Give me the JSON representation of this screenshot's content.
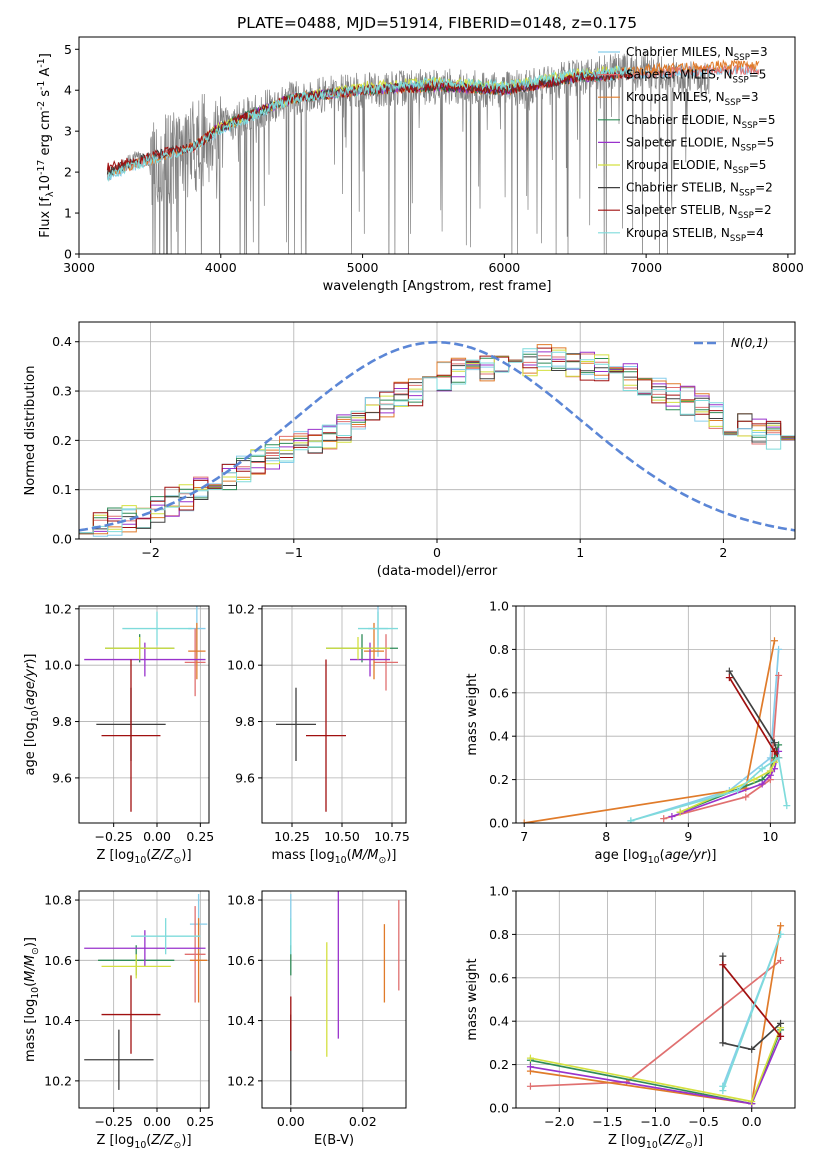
{
  "chart_data": [
    {
      "id": "spectrum",
      "type": "line",
      "title": "PLATE=0488, MJD=51914, FIBERID=0148, z=0.175",
      "xlabel": "wavelength [Angstrom, rest frame]",
      "ylabel": "Flux [f$_\\lambda$10$^{-17}$ erg cm$^{-2}$ s$^{-1}$ A$^{-1}$]",
      "xlim": [
        3000,
        8050
      ],
      "ylim": [
        0,
        5.3
      ],
      "xticks": [
        3000,
        4000,
        5000,
        6000,
        7000,
        8000
      ],
      "yticks": [
        0,
        1,
        2,
        3,
        4,
        5
      ],
      "grid": false,
      "legend_position": "upper-right",
      "data_series": {
        "name": "",
        "color": "#808080",
        "x": [
          3200,
          3400,
          3500,
          3600,
          3800,
          4000,
          4200,
          4500,
          5000,
          5500,
          6000,
          6500,
          6800,
          7000,
          7300,
          7450
        ],
        "y": [
          1.9,
          2.4,
          2.2,
          2.3,
          2.6,
          3.1,
          3.4,
          3.8,
          4.0,
          4.1,
          4.0,
          4.3,
          4.5,
          4.5,
          4.3,
          4.2
        ],
        "noise_from_x": 3500
      },
      "series": [
        {
          "name": "Chabrier MILES, N$_{SSP}$=3",
          "color": "#87ceeb",
          "x": [
            3200,
            3500,
            3800,
            4000,
            4500,
            5000,
            5500,
            6000,
            6500,
            7000,
            7500,
            7800
          ],
          "y": [
            1.9,
            2.3,
            2.6,
            3.0,
            3.8,
            4.0,
            4.1,
            4.0,
            4.3,
            4.4,
            4.5,
            4.5
          ]
        },
        {
          "name": "Salpeter MILES, N$_{SSP}$=5",
          "color": "#e07070",
          "x": [
            3200,
            3500,
            3800,
            4000,
            4500,
            5000,
            5500,
            6000,
            6500,
            7000,
            7500,
            7800
          ],
          "y": [
            2.0,
            2.3,
            2.6,
            3.1,
            3.8,
            4.0,
            4.1,
            4.0,
            4.3,
            4.4,
            4.5,
            4.5
          ]
        },
        {
          "name": "Kroupa MILES, N$_{SSP}$=3",
          "color": "#e07b2a",
          "x": [
            3200,
            3500,
            3800,
            4000,
            4500,
            5000,
            5500,
            6000,
            6500,
            7000,
            7500,
            7800
          ],
          "y": [
            2.0,
            2.3,
            2.6,
            3.1,
            3.8,
            4.0,
            4.1,
            4.0,
            4.3,
            4.5,
            4.6,
            4.6
          ]
        },
        {
          "name": "Chabrier ELODIE, N$_{SSP}$=5",
          "color": "#2e8b57",
          "x": [
            3900,
            4000,
            4500,
            5000,
            5500,
            6000,
            6500,
            6800
          ],
          "y": [
            2.9,
            3.1,
            3.8,
            4.0,
            4.1,
            4.0,
            4.3,
            4.4
          ]
        },
        {
          "name": "Salpeter ELODIE, N$_{SSP}$=5",
          "color": "#9932cc",
          "x": [
            3900,
            4000,
            4500,
            5000,
            5500,
            6000,
            6500,
            6800
          ],
          "y": [
            2.9,
            3.1,
            3.8,
            4.0,
            4.1,
            4.0,
            4.3,
            4.4
          ]
        },
        {
          "name": "Kroupa ELODIE, N$_{SSP}$=5",
          "color": "#d4e040",
          "x": [
            3900,
            4000,
            4500,
            5000,
            5500,
            6000,
            6500,
            6800
          ],
          "y": [
            2.9,
            3.1,
            3.8,
            4.1,
            4.2,
            4.1,
            4.4,
            4.5
          ]
        },
        {
          "name": "Chabrier STELIB, N$_{SSP}$=2",
          "color": "#404040",
          "x": [
            3200,
            3500,
            3800,
            4000,
            4500,
            5000,
            5500,
            6000,
            6500,
            6900
          ],
          "y": [
            2.0,
            2.4,
            2.6,
            3.1,
            3.8,
            4.0,
            4.1,
            4.0,
            4.3,
            4.4
          ]
        },
        {
          "name": "Salpeter STELIB, N$_{SSP}$=2",
          "color": "#a01010",
          "x": [
            3200,
            3500,
            3800,
            4000,
            4500,
            5000,
            5500,
            6000,
            6500,
            6900
          ],
          "y": [
            2.1,
            2.4,
            2.6,
            3.1,
            3.8,
            4.0,
            4.1,
            4.0,
            4.3,
            4.4
          ]
        },
        {
          "name": "Kroupa STELIB, N$_{SSP}$=4",
          "color": "#7fdbdb",
          "x": [
            3200,
            3500,
            3800,
            4000,
            4500,
            5000,
            5500,
            6000,
            6500,
            6900
          ],
          "y": [
            1.9,
            2.3,
            2.6,
            3.0,
            3.8,
            4.0,
            4.2,
            4.1,
            4.4,
            4.5
          ]
        }
      ]
    },
    {
      "id": "residuals",
      "type": "histogram",
      "xlabel": "(data-model)/error",
      "ylabel": "Normed distribution",
      "xlim": [
        -2.5,
        2.5
      ],
      "ylim": [
        0,
        0.44
      ],
      "xticks": [
        -2,
        -1,
        0,
        1,
        2
      ],
      "yticks": [
        0.0,
        0.1,
        0.2,
        0.3,
        0.4
      ],
      "grid": true,
      "legend_position": "upper-right",
      "gaussian": {
        "name": "$\\mathcal{N}(0,1)$",
        "mean": 0,
        "sigma": 1,
        "color": "#5b86d6",
        "style": "dashed"
      },
      "bin_start": -2.5,
      "bin_width": 0.1,
      "base_profile": [
        0.025,
        0.03,
        0.035,
        0.04,
        0.05,
        0.06,
        0.075,
        0.085,
        0.1,
        0.12,
        0.13,
        0.14,
        0.155,
        0.165,
        0.18,
        0.19,
        0.2,
        0.21,
        0.225,
        0.245,
        0.26,
        0.27,
        0.29,
        0.3,
        0.32,
        0.33,
        0.34,
        0.35,
        0.345,
        0.355,
        0.36,
        0.36,
        0.365,
        0.37,
        0.355,
        0.35,
        0.345,
        0.34,
        0.33,
        0.32,
        0.3,
        0.29,
        0.28,
        0.265,
        0.25,
        0.24,
        0.23,
        0.22,
        0.21,
        0.2,
        0.19,
        0.18,
        0.17,
        0.16,
        0.14,
        0.12,
        0.1,
        0.09,
        0.07,
        0.06
      ],
      "series_colors": [
        "#87ceeb",
        "#e07070",
        "#e07b2a",
        "#2e8b57",
        "#9932cc",
        "#d4e040",
        "#404040",
        "#a01010",
        "#7fdbdb"
      ]
    },
    {
      "id": "age-vs-Z",
      "type": "errorbar",
      "xlabel": "Z [log$_{10}$($Z/Z_\\odot$)]",
      "ylabel": "age  [log$_{10}$($age/yr$)]",
      "xlim": [
        -0.45,
        0.3
      ],
      "ylim": [
        9.44,
        10.21
      ],
      "xticks": [
        -0.25,
        0.0,
        0.25
      ],
      "yticks": [
        9.6,
        9.8,
        10.0,
        10.2
      ],
      "grid": true,
      "points": [
        {
          "color": "#87ceeb",
          "x": 0.23,
          "y": 10.13,
          "xerr": 0.05,
          "yerr": 0.1
        },
        {
          "color": "#e07070",
          "x": 0.22,
          "y": 10.01,
          "xerr": 0.06,
          "yerr": 0.12
        },
        {
          "color": "#e07b2a",
          "x": 0.23,
          "y": 10.05,
          "xerr": 0.05,
          "yerr": 0.1
        },
        {
          "color": "#2e8b57",
          "x": -0.1,
          "y": 10.06,
          "xerr": 0.2,
          "yerr": 0.05
        },
        {
          "color": "#9932cc",
          "x": -0.07,
          "y": 10.02,
          "xerr": 0.35,
          "yerr": 0.06
        },
        {
          "color": "#d4e040",
          "x": -0.1,
          "y": 10.06,
          "xerr": 0.2,
          "yerr": 0.04
        },
        {
          "color": "#404040",
          "x": -0.15,
          "y": 9.79,
          "xerr": 0.2,
          "yerr": 0.13
        },
        {
          "color": "#a01010",
          "x": -0.15,
          "y": 9.75,
          "xerr": 0.17,
          "yerr": 0.27
        },
        {
          "color": "#7fdbdb",
          "x": 0.0,
          "y": 10.13,
          "xerr": 0.2,
          "yerr": 0.06
        }
      ]
    },
    {
      "id": "age-vs-mass",
      "type": "errorbar",
      "xlabel": "mass [log$_{10}$($M/M_\\odot$)]",
      "ylabel": "",
      "xlim": [
        10.1,
        10.82
      ],
      "ylim": [
        9.44,
        10.21
      ],
      "xticks": [
        10.25,
        10.5,
        10.75
      ],
      "yticks": [
        9.6,
        9.8,
        10.0,
        10.2
      ],
      "grid": true,
      "points": [
        {
          "color": "#87ceeb",
          "x": 10.68,
          "y": 10.13,
          "xerr": 0.05,
          "yerr": 0.1
        },
        {
          "color": "#e07070",
          "x": 10.72,
          "y": 10.01,
          "xerr": 0.06,
          "yerr": 0.1
        },
        {
          "color": "#e07b2a",
          "x": 10.66,
          "y": 10.05,
          "xerr": 0.05,
          "yerr": 0.1
        },
        {
          "color": "#2e8b57",
          "x": 10.6,
          "y": 10.06,
          "xerr": 0.18,
          "yerr": 0.05
        },
        {
          "color": "#9932cc",
          "x": 10.64,
          "y": 10.02,
          "xerr": 0.1,
          "yerr": 0.06
        },
        {
          "color": "#d4e040",
          "x": 10.58,
          "y": 10.06,
          "xerr": 0.16,
          "yerr": 0.04
        },
        {
          "color": "#404040",
          "x": 10.27,
          "y": 9.79,
          "xerr": 0.1,
          "yerr": 0.13
        },
        {
          "color": "#a01010",
          "x": 10.42,
          "y": 9.75,
          "xerr": 0.1,
          "yerr": 0.27
        },
        {
          "color": "#7fdbdb",
          "x": 10.68,
          "y": 10.13,
          "xerr": 0.1,
          "yerr": 0.06
        }
      ]
    },
    {
      "id": "massweight-vs-age",
      "type": "line",
      "xlabel": "age  [log$_{10}$($age/yr$)]",
      "ylabel": "mass weight",
      "xlim": [
        6.9,
        10.3
      ],
      "ylim": [
        0,
        1
      ],
      "xticks": [
        7,
        8,
        9,
        10
      ],
      "yticks": [
        0.0,
        0.2,
        0.4,
        0.6,
        0.8,
        1.0
      ],
      "grid": true,
      "series": [
        {
          "color": "#87ceeb",
          "x": [
            8.3,
            9.5,
            10.0,
            10.1
          ],
          "y": [
            0.01,
            0.15,
            0.3,
            0.8
          ]
        },
        {
          "color": "#e07070",
          "x": [
            8.7,
            9.7,
            10.0,
            10.1
          ],
          "y": [
            0.02,
            0.12,
            0.2,
            0.68
          ]
        },
        {
          "color": "#e07b2a",
          "x": [
            7.0,
            9.7,
            10.05
          ],
          "y": [
            0.0,
            0.16,
            0.84
          ]
        },
        {
          "color": "#2e8b57",
          "x": [
            8.9,
            9.9,
            10.0,
            10.05,
            10.1
          ],
          "y": [
            0.05,
            0.2,
            0.24,
            0.3,
            0.36
          ]
        },
        {
          "color": "#9932cc",
          "x": [
            8.8,
            9.9,
            10.0,
            10.05,
            10.1
          ],
          "y": [
            0.03,
            0.18,
            0.22,
            0.25,
            0.33
          ]
        },
        {
          "color": "#d4e040",
          "x": [
            8.9,
            9.8,
            10.0,
            10.05,
            10.1
          ],
          "y": [
            0.05,
            0.2,
            0.24,
            0.28,
            0.3
          ]
        },
        {
          "color": "#404040",
          "x": [
            9.5,
            10.05,
            10.1
          ],
          "y": [
            0.7,
            0.37,
            0.3
          ]
        },
        {
          "color": "#a01010",
          "x": [
            9.5,
            10.05,
            10.1
          ],
          "y": [
            0.67,
            0.33,
            0.3
          ]
        },
        {
          "color": "#7fdbdb",
          "x": [
            8.3,
            9.6,
            9.9,
            10.1,
            10.2
          ],
          "y": [
            0.01,
            0.15,
            0.25,
            0.3,
            0.08
          ]
        }
      ]
    },
    {
      "id": "mass-vs-Z",
      "type": "errorbar",
      "xlabel": "Z [log$_{10}$($Z/Z_\\odot$)]",
      "ylabel": "mass [log$_{10}$($M/M_\\odot$)]",
      "xlim": [
        -0.45,
        0.3
      ],
      "ylim": [
        10.11,
        10.83
      ],
      "xticks": [
        -0.25,
        0.0,
        0.25
      ],
      "yticks": [
        10.2,
        10.4,
        10.6,
        10.8
      ],
      "grid": true,
      "points": [
        {
          "color": "#87ceeb",
          "x": 0.24,
          "y": 10.72,
          "xerr": 0.05,
          "yerr": 0.1
        },
        {
          "color": "#e07070",
          "x": 0.22,
          "y": 10.62,
          "xerr": 0.06,
          "yerr": 0.16
        },
        {
          "color": "#e07b2a",
          "x": 0.24,
          "y": 10.6,
          "xerr": 0.05,
          "yerr": 0.14
        },
        {
          "color": "#2e8b57",
          "x": -0.12,
          "y": 10.6,
          "xerr": 0.22,
          "yerr": 0.05
        },
        {
          "color": "#9932cc",
          "x": -0.07,
          "y": 10.64,
          "xerr": 0.35,
          "yerr": 0.06
        },
        {
          "color": "#d4e040",
          "x": -0.12,
          "y": 10.58,
          "xerr": 0.2,
          "yerr": 0.04
        },
        {
          "color": "#404040",
          "x": -0.22,
          "y": 10.27,
          "xerr": 0.2,
          "yerr": 0.1
        },
        {
          "color": "#a01010",
          "x": -0.15,
          "y": 10.42,
          "xerr": 0.17,
          "yerr": 0.13
        },
        {
          "color": "#7fdbdb",
          "x": 0.05,
          "y": 10.68,
          "xerr": 0.2,
          "yerr": 0.06
        }
      ]
    },
    {
      "id": "mass-vs-EBV",
      "type": "errorbar",
      "xlabel": "E(B-V)",
      "ylabel": "",
      "xlim": [
        -0.008,
        0.032
      ],
      "ylim": [
        10.11,
        10.83
      ],
      "xticks": [
        0.0,
        0.02
      ],
      "yticks": [
        10.2,
        10.4,
        10.6,
        10.8
      ],
      "grid": true,
      "points": [
        {
          "color": "#87ceeb",
          "x": 0.0,
          "y": 10.72,
          "xerr": 0,
          "yerr": 0.1
        },
        {
          "color": "#e07070",
          "x": 0.03,
          "y": 10.65,
          "xerr": 0,
          "yerr": 0.15
        },
        {
          "color": "#e07b2a",
          "x": 0.026,
          "y": 10.59,
          "xerr": 0,
          "yerr": 0.13
        },
        {
          "color": "#2e8b57",
          "x": 0.0,
          "y": 10.6,
          "xerr": 0,
          "yerr": 0.05
        },
        {
          "color": "#9932cc",
          "x": 0.0132,
          "y": 10.6,
          "xerr": 0,
          "yerr": 0.26
        },
        {
          "color": "#d4e040",
          "x": 0.01,
          "y": 10.47,
          "xerr": 0,
          "yerr": 0.19
        },
        {
          "color": "#404040",
          "x": 0.0,
          "y": 10.27,
          "xerr": 0,
          "yerr": 0.15
        },
        {
          "color": "#a01010",
          "x": 0.0,
          "y": 10.39,
          "xerr": 0,
          "yerr": 0.09
        },
        {
          "color": "#7fdbdb",
          "x": 0.0,
          "y": 10.68,
          "xerr": 0,
          "yerr": 0.06
        }
      ]
    },
    {
      "id": "massweight-vs-Z",
      "type": "line",
      "xlabel": "Z [log$_{10}$($Z/Z_\\odot$)]",
      "ylabel": "mass weight",
      "xlim": [
        -2.45,
        0.45
      ],
      "ylim": [
        0,
        1
      ],
      "xticks": [
        -2.0,
        -1.5,
        -1.0,
        -0.5,
        0.0
      ],
      "yticks": [
        0.0,
        0.2,
        0.4,
        0.6,
        0.8,
        1.0
      ],
      "grid": true,
      "series": [
        {
          "color": "#87ceeb",
          "x": [
            -0.3,
            0.3
          ],
          "y": [
            0.1,
            0.8
          ]
        },
        {
          "color": "#e07070",
          "x": [
            -2.3,
            -1.3,
            0.3
          ],
          "y": [
            0.1,
            0.12,
            0.68
          ]
        },
        {
          "color": "#e07b2a",
          "x": [
            -2.3,
            0.0,
            0.3
          ],
          "y": [
            0.17,
            0.02,
            0.84
          ]
        },
        {
          "color": "#2e8b57",
          "x": [
            -2.3,
            0.0,
            0.3
          ],
          "y": [
            0.22,
            0.02,
            0.36
          ]
        },
        {
          "color": "#9932cc",
          "x": [
            -2.3,
            0.0,
            0.3
          ],
          "y": [
            0.19,
            0.02,
            0.33
          ]
        },
        {
          "color": "#d4e040",
          "x": [
            -2.3,
            0.0,
            0.3
          ],
          "y": [
            0.23,
            0.03,
            0.37
          ]
        },
        {
          "color": "#404040",
          "x": [
            -0.3,
            -0.3,
            0.0,
            0.3
          ],
          "y": [
            0.7,
            0.3,
            0.27,
            0.39
          ]
        },
        {
          "color": "#a01010",
          "x": [
            -0.3,
            0.3
          ],
          "y": [
            0.66,
            0.33
          ]
        },
        {
          "color": "#7fdbdb",
          "x": [
            -0.3,
            -0.3,
            0.3
          ],
          "y": [
            0.1,
            0.08,
            0.8
          ]
        }
      ]
    }
  ]
}
